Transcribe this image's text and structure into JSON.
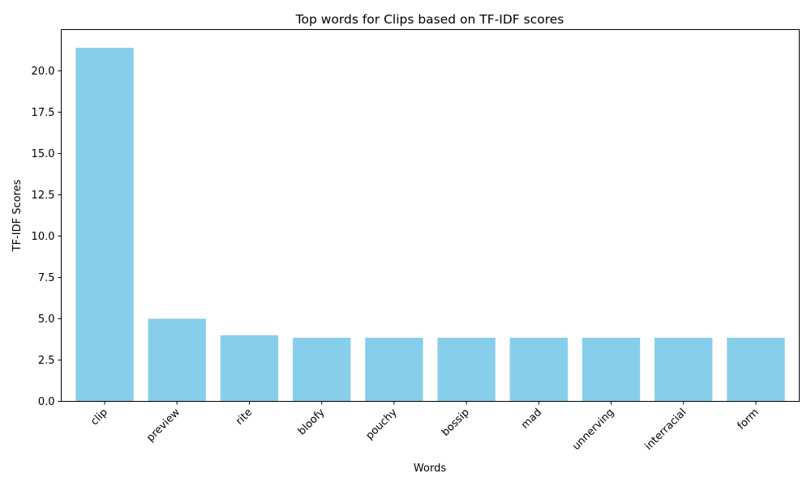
{
  "chart_data": {
    "type": "bar",
    "title": "Top words for Clips based on TF-IDF scores",
    "xlabel": "Words",
    "ylabel": "TF-IDF Scores",
    "categories": [
      "clip",
      "preview",
      "rite",
      "bloofy",
      "pouchy",
      "bossip",
      "mad",
      "unnerving",
      "interracial",
      "form"
    ],
    "values": [
      21.4,
      5.0,
      4.0,
      3.85,
      3.85,
      3.85,
      3.85,
      3.85,
      3.85,
      3.85
    ],
    "ylim": [
      0,
      22.5
    ],
    "yticks": [
      "0.0",
      "2.5",
      "5.0",
      "7.5",
      "10.0",
      "12.5",
      "15.0",
      "17.5",
      "20.0"
    ],
    "grid": false,
    "bar_color": "#87ceeb"
  }
}
